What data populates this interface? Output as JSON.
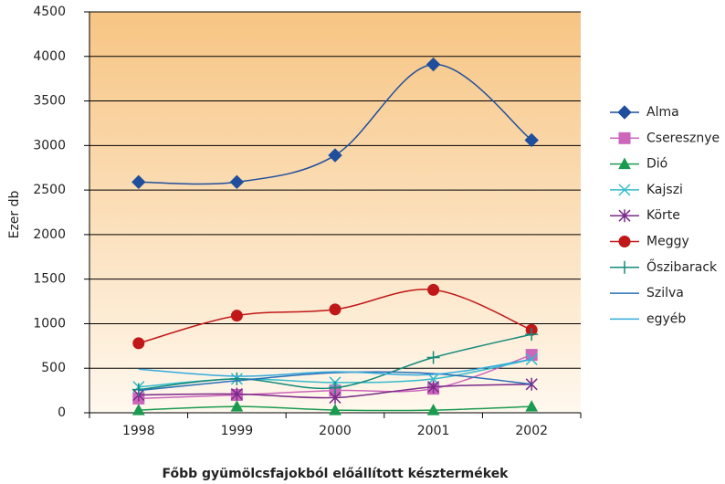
{
  "chart_data": {
    "type": "line",
    "title": "Főbb gyümölcsfajokból előállított késztermékek",
    "y_label": "Ezer db",
    "categories": [
      "1998",
      "1999",
      "2000",
      "2001",
      "2002"
    ],
    "series": [
      {
        "name": "Alma",
        "color": "#1f4e9c",
        "marker": "diamond",
        "values": [
          2590,
          2590,
          2890,
          3910,
          3060
        ]
      },
      {
        "name": "Cseresznye",
        "color": "#cc66bb",
        "marker": "square",
        "values": [
          160,
          200,
          250,
          270,
          650
        ]
      },
      {
        "name": "Dió",
        "color": "#1a9b50",
        "marker": "triangle",
        "values": [
          30,
          70,
          30,
          30,
          70
        ]
      },
      {
        "name": "Kajszi",
        "color": "#33bbcc",
        "marker": "x",
        "values": [
          290,
          380,
          340,
          380,
          600
        ]
      },
      {
        "name": "Körte",
        "color": "#7b2a8a",
        "marker": "star",
        "values": [
          200,
          210,
          170,
          290,
          320
        ]
      },
      {
        "name": "Meggy",
        "color": "#c01818",
        "marker": "circle",
        "values": [
          780,
          1090,
          1160,
          1380,
          930
        ]
      },
      {
        "name": "Őszibarack",
        "color": "#138a7a",
        "marker": "plus",
        "values": [
          260,
          380,
          280,
          620,
          880
        ]
      },
      {
        "name": "Szilva",
        "color": "#2a6fb8",
        "marker": "none",
        "values": [
          250,
          360,
          450,
          440,
          320
        ]
      },
      {
        "name": "egyéb",
        "color": "#33aadd",
        "marker": "none",
        "values": [
          490,
          410,
          460,
          430,
          600
        ]
      }
    ],
    "ylim": [
      0,
      4500
    ],
    "yticks": [
      0,
      500,
      1000,
      1500,
      2000,
      2500,
      3000,
      3500,
      4000,
      4500
    ],
    "grid": true,
    "legend": "right"
  }
}
